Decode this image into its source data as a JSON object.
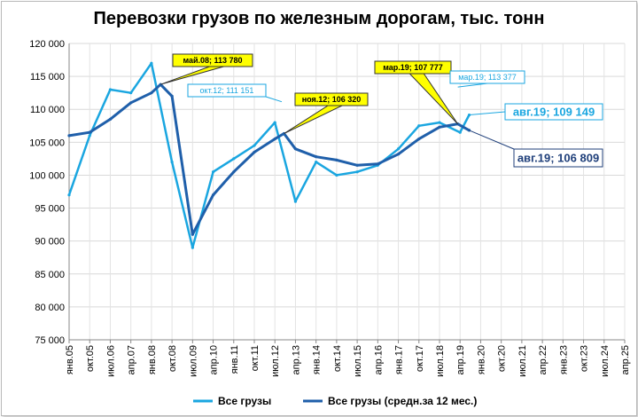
{
  "chart_data": {
    "type": "line",
    "title": "Перевозки грузов по железным дорогам, тыс. тонн",
    "xlabel": "",
    "ylabel": "",
    "ylim": [
      75000,
      120000
    ],
    "yticks": [
      75000,
      80000,
      85000,
      90000,
      95000,
      100000,
      105000,
      110000,
      115000,
      120000
    ],
    "ytick_labels": [
      "75 000",
      "80 000",
      "85 000",
      "90 000",
      "95 000",
      "100 000",
      "105 000",
      "110 000",
      "115 000",
      "120 000"
    ],
    "xtick_labels": [
      "янв.05",
      "окт.05",
      "июл.06",
      "апр.07",
      "янв.08",
      "окт.08",
      "июл.09",
      "апр.10",
      "янв.11",
      "окт.11",
      "июл.12",
      "апр.13",
      "янв.14",
      "окт.14",
      "июл.15",
      "апр.16",
      "янв.17",
      "окт.17",
      "июл.18",
      "апр.19",
      "янв.20",
      "окт.20",
      "июл.21",
      "апр.22",
      "янв.23",
      "окт.23",
      "июл.24",
      "апр.25"
    ],
    "grid": true,
    "legend": "bottom",
    "series": [
      {
        "name": "Все грузы",
        "color": "#1aa6e0",
        "x": [
          "янв.05",
          "окт.05",
          "июл.06",
          "апр.07",
          "янв.08",
          "окт.08",
          "июл.09",
          "апр.10",
          "янв.11",
          "окт.11",
          "июл.12",
          "апр.13",
          "янв.14",
          "окт.14",
          "июл.15",
          "апр.16",
          "янв.17",
          "окт.17",
          "июл.18",
          "апр.19",
          "авг.19"
        ],
        "values": [
          97000,
          106000,
          113000,
          112500,
          117000,
          102000,
          89000,
          100500,
          102500,
          104500,
          108000,
          96000,
          102000,
          100000,
          100500,
          101500,
          104000,
          107500,
          108000,
          106500,
          109149
        ]
      },
      {
        "name": "Все грузы (средн.за 12 мес.)",
        "color": "#1f5faa",
        "x": [
          "янв.05",
          "окт.05",
          "июл.06",
          "апр.07",
          "янв.08",
          "май.08",
          "окт.08",
          "июл.09",
          "апр.10",
          "янв.11",
          "окт.11",
          "июл.12",
          "ноя.12",
          "апр.13",
          "янв.14",
          "окт.14",
          "июл.15",
          "апр.16",
          "янв.17",
          "окт.17",
          "июл.18",
          "мар.19",
          "авг.19"
        ],
        "values": [
          106000,
          106500,
          108500,
          111000,
          112500,
          113780,
          112000,
          91000,
          97000,
          100500,
          103500,
          105500,
          106320,
          104000,
          102800,
          102300,
          101500,
          101700,
          103200,
          105500,
          107300,
          107777,
          106809
        ]
      }
    ],
    "annotations": [
      {
        "text": "май.08;  113 780",
        "style": "yellow-callout"
      },
      {
        "text": "ноя.12;  106 320",
        "style": "yellow-callout"
      },
      {
        "text": "мар.19;  107 777",
        "style": "yellow-callout"
      },
      {
        "text": "окт.12; 111 151",
        "style": "blue-outline"
      },
      {
        "text": "мар.19; 113 377",
        "style": "blue-outline"
      },
      {
        "text": "авг.19; 109 149",
        "style": "blue-outline-large"
      },
      {
        "text": "авг.19;  106 809",
        "style": "navy-outline-large"
      }
    ],
    "legend_entries": [
      "Все грузы",
      "Все грузы (средн.за 12 мес.)"
    ]
  }
}
